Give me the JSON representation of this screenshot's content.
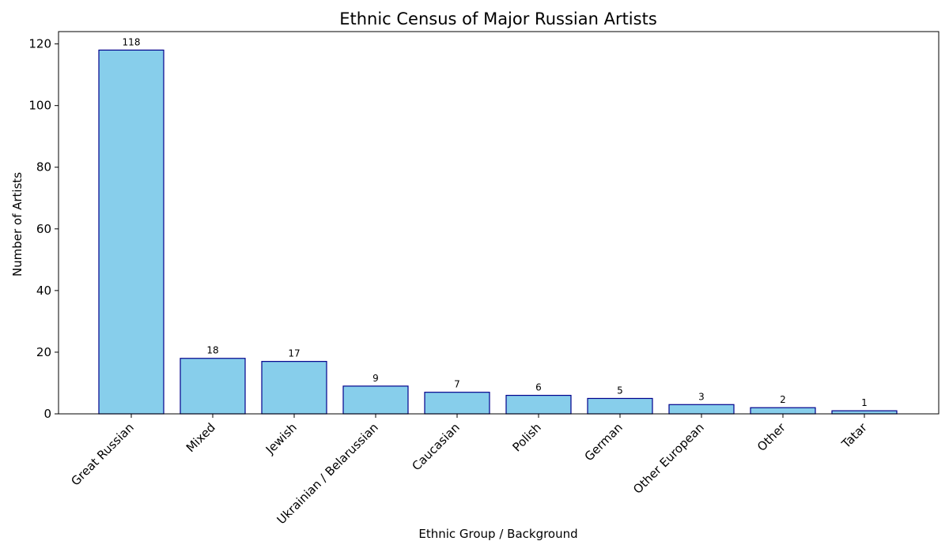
{
  "chart_data": {
    "type": "bar",
    "title": "Ethnic Census of Major Russian Artists",
    "xlabel": "Ethnic Group / Background",
    "ylabel": "Number of Artists",
    "categories": [
      "Great Russian",
      "Mixed",
      "Jewish",
      "Ukrainian / Belarussian",
      "Caucasian",
      "Polish",
      "German",
      "Other European",
      "Other",
      "Tatar"
    ],
    "values": [
      118,
      18,
      17,
      9,
      7,
      6,
      5,
      3,
      2,
      1
    ],
    "data_labels": [
      "118",
      "18",
      "17",
      "9",
      "7",
      "6",
      "5",
      "3",
      "2",
      "1"
    ],
    "yticks": [
      0,
      20,
      40,
      60,
      80,
      100,
      120
    ],
    "ytick_labels": [
      "0",
      "20",
      "40",
      "60",
      "80",
      "100",
      "120"
    ],
    "ylim": [
      0,
      124
    ],
    "grid": false,
    "legend": "none",
    "colors": {
      "bar_fill": "#87ceeb",
      "bar_edge": "#00008b",
      "axis": "#000000"
    }
  }
}
